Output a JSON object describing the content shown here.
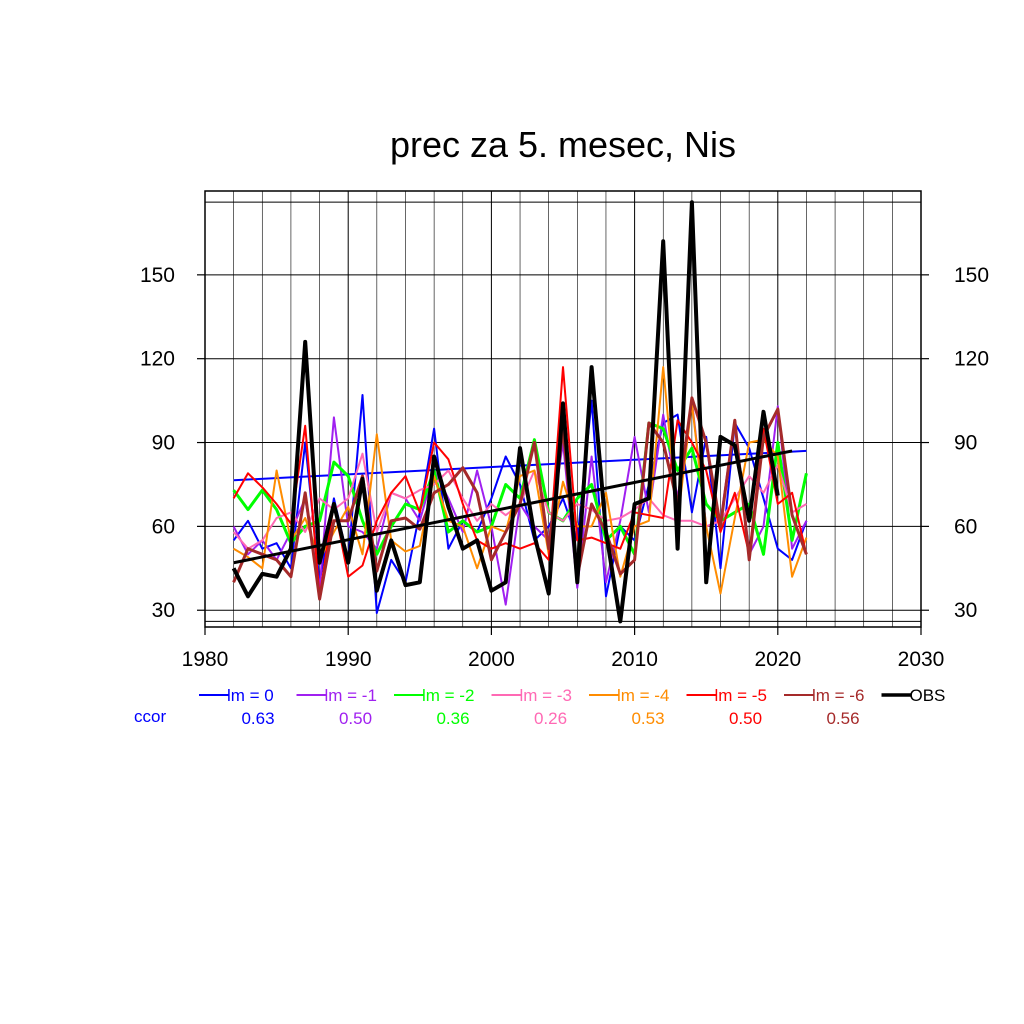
{
  "chart_data": {
    "type": "line",
    "title": "prec za 5. mesec, Nis",
    "xlim": [
      1980,
      2030
    ],
    "ylim": [
      24,
      180
    ],
    "x_ticks": [
      1980,
      1990,
      2000,
      2010,
      2020,
      2030
    ],
    "y_ticks": [
      30,
      60,
      90,
      120,
      150
    ],
    "grid": true,
    "legend_position": "bottom",
    "ccor_label": "ccor",
    "ccor_color": "#0000ff",
    "x": [
      1982,
      1983,
      1984,
      1985,
      1986,
      1987,
      1988,
      1989,
      1990,
      1991,
      1992,
      1993,
      1994,
      1995,
      1996,
      1997,
      1998,
      1999,
      2000,
      2001,
      2002,
      2003,
      2004,
      2005,
      2006,
      2007,
      2008,
      2009,
      2010,
      2011,
      2012,
      2013,
      2014,
      2015,
      2016,
      2017,
      2018,
      2019,
      2020,
      2021,
      2022
    ],
    "series": [
      {
        "name": "lm = 0",
        "color": "#0000ff",
        "width": 2,
        "ccor": "0.63",
        "values": [
          55,
          62,
          52,
          54,
          45,
          90,
          40,
          70,
          48,
          107,
          29,
          48,
          40,
          65,
          95,
          52,
          62,
          58,
          70,
          85,
          75,
          55,
          60,
          70,
          55,
          105,
          35,
          60,
          55,
          75,
          97,
          100,
          65,
          92,
          45,
          97,
          88,
          70,
          52,
          48,
          62
        ],
        "trend": [
          76.5,
          87
        ]
      },
      {
        "name": "lm = -1",
        "color": "#a020f0",
        "width": 2,
        "ccor": "0.50",
        "values": [
          60,
          50,
          55,
          48,
          58,
          70,
          38,
          99,
          60,
          58,
          52,
          72,
          70,
          62,
          80,
          70,
          58,
          80,
          60,
          32,
          68,
          60,
          55,
          90,
          38,
          85,
          40,
          62,
          92,
          65,
          100,
          70,
          105,
          60,
          62,
          98,
          50,
          60,
          103,
          52,
          62
        ]
      },
      {
        "name": "lm = -2",
        "color": "#00ff00",
        "width": 3,
        "ccor": "0.36",
        "values": [
          73,
          66,
          73,
          66,
          54,
          60,
          62,
          83,
          78,
          62,
          50,
          60,
          68,
          66,
          80,
          58,
          62,
          58,
          60,
          75,
          70,
          91,
          65,
          62,
          70,
          75,
          55,
          60,
          50,
          97,
          95,
          80,
          88,
          68,
          62,
          65,
          68,
          50,
          90,
          55,
          79
        ]
      },
      {
        "name": "lm = -3",
        "color": "#ff69b4",
        "width": 2,
        "ccor": "0.26",
        "values": [
          58,
          52,
          55,
          63,
          65,
          58,
          70,
          66,
          70,
          86,
          58,
          72,
          70,
          73,
          75,
          80,
          70,
          62,
          68,
          64,
          68,
          80,
          65,
          62,
          68,
          66,
          62,
          63,
          66,
          70,
          64,
          62,
          62,
          60,
          62,
          70,
          78,
          72,
          82,
          65,
          68
        ]
      },
      {
        "name": "lm = -4",
        "color": "#ff8c00",
        "width": 2,
        "ccor": "0.53",
        "values": [
          52,
          49,
          45,
          80,
          55,
          63,
          48,
          58,
          67,
          50,
          93,
          55,
          51,
          53,
          78,
          62,
          60,
          45,
          60,
          58,
          78,
          80,
          50,
          76,
          60,
          60,
          72,
          42,
          60,
          62,
          117,
          62,
          104,
          60,
          36,
          63,
          90,
          91,
          85,
          42,
          56
        ]
      },
      {
        "name": "lm = -5",
        "color": "#ff0000",
        "width": 2,
        "ccor": "0.50",
        "values": [
          70,
          79,
          74,
          68,
          61,
          96,
          35,
          68,
          42,
          46,
          62,
          72,
          78,
          65,
          90,
          84,
          68,
          55,
          52,
          54,
          52,
          54,
          48,
          117,
          55,
          56,
          54,
          52,
          65,
          64,
          63,
          98,
          90,
          80,
          58,
          72,
          50,
          95,
          68,
          72,
          50
        ]
      },
      {
        "name": "lm = -6",
        "color": "#a52a2a",
        "width": 3,
        "ccor": "0.56",
        "values": [
          40,
          52,
          50,
          48,
          42,
          72,
          34,
          62,
          62,
          78,
          44,
          62,
          63,
          59,
          72,
          75,
          81,
          72,
          48,
          58,
          68,
          90,
          52,
          95,
          42,
          68,
          58,
          43,
          48,
          97,
          90,
          68,
          106,
          90,
          60,
          98,
          48,
          92,
          102,
          64,
          50
        ]
      },
      {
        "name": "OBS",
        "color": "#000000",
        "width": 4,
        "values": [
          45,
          35,
          43,
          42,
          52,
          126,
          47,
          68,
          47,
          77,
          37,
          55,
          39,
          40,
          85,
          67,
          52,
          55,
          37,
          40,
          88,
          57,
          36,
          104,
          40,
          117,
          58,
          26,
          68,
          70,
          162,
          52,
          176,
          40,
          92,
          89,
          62,
          101,
          71,
          null,
          null
        ],
        "trend": [
          47,
          87
        ]
      }
    ]
  }
}
